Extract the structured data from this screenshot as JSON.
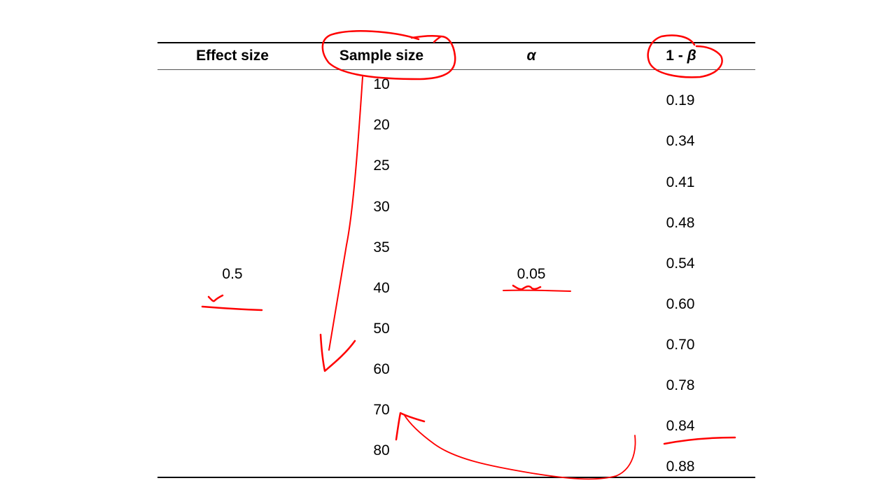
{
  "table": {
    "headers": {
      "effect_size": "Effect size",
      "sample_size": "Sample size",
      "alpha": "α",
      "power_prefix": "1 - ",
      "power_beta": "β"
    },
    "effect_size": "0.5",
    "alpha": "0.05",
    "sample_sizes": [
      "10",
      "20",
      "25",
      "30",
      "35",
      "40",
      "50",
      "60",
      "70",
      "80"
    ],
    "power": [
      "0.19",
      "0.34",
      "0.41",
      "0.48",
      "0.54",
      "0.60",
      "0.70",
      "0.78",
      "0.84",
      "0.88"
    ]
  },
  "annotation_color": "#ff0000"
}
